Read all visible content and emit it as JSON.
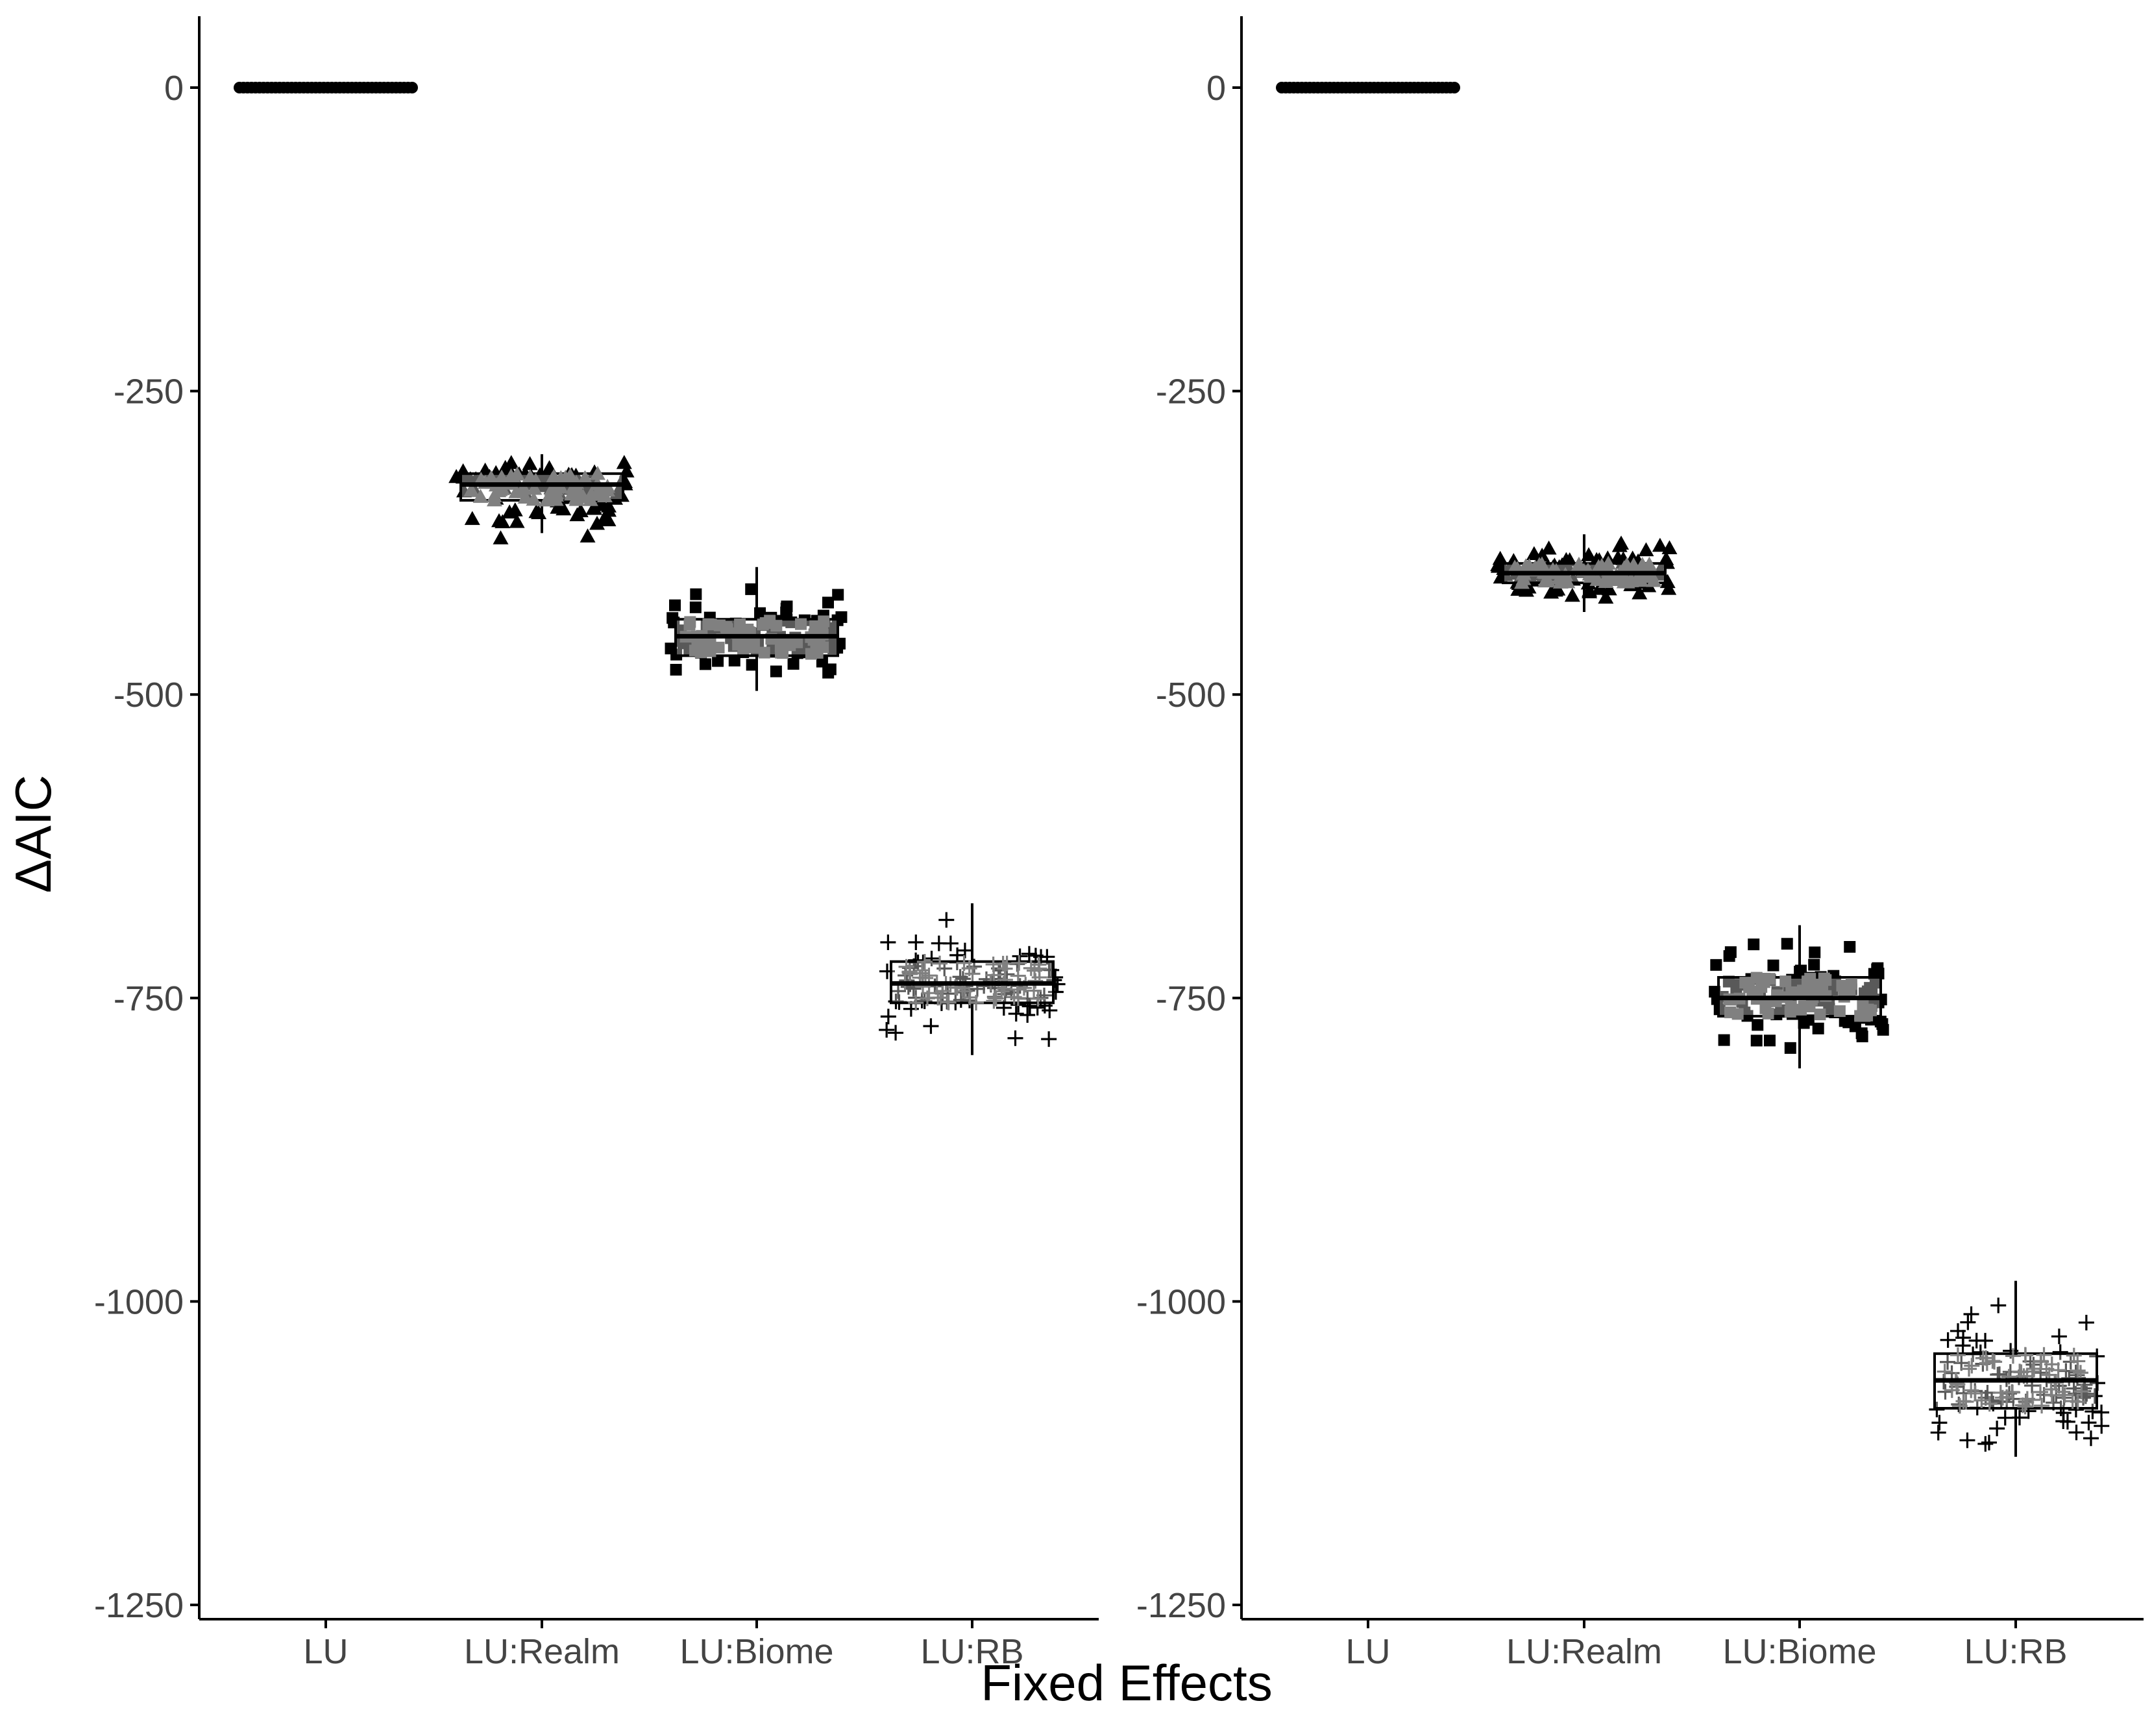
{
  "chart_data": {
    "type": "boxplot",
    "xlabel": "Fixed Effects",
    "ylabel": "ΔAIC",
    "ylim": [
      -1250,
      0
    ],
    "yticks": [
      0,
      -250,
      -500,
      -750,
      -1000,
      -1250
    ],
    "categories": [
      "LU",
      "LU:Realm",
      "LU:Biome",
      "LU:RB"
    ],
    "grid": false,
    "legend": "none",
    "colors": {
      "points": "#000000",
      "inner_points": "#808080",
      "box": "#000000",
      "axis": "#000000"
    },
    "panels": [
      {
        "boxes": [
          {
            "category": "LU",
            "shape": "circle",
            "q1": 0,
            "median": 0,
            "q3": 0,
            "whisker_low": 0,
            "whisker_high": 0,
            "points_min": 0,
            "points_max": 0
          },
          {
            "category": "LU:Realm",
            "shape": "triangle",
            "q1": -340,
            "median": -327,
            "q3": -318,
            "whisker_low": -367,
            "whisker_high": -302,
            "points_min": -393,
            "points_max": -300
          },
          {
            "category": "LU:Biome",
            "shape": "square",
            "q1": -468,
            "median": -452,
            "q3": -438,
            "whisker_low": -497,
            "whisker_high": -395,
            "points_min": -497,
            "points_max": -395
          },
          {
            "category": "LU:RB",
            "shape": "plus",
            "q1": -754,
            "median": -738,
            "q3": -720,
            "whisker_low": -797,
            "whisker_high": -672,
            "points_min": -800,
            "points_max": -670
          }
        ]
      },
      {
        "boxes": [
          {
            "category": "LU",
            "shape": "circle",
            "q1": 0,
            "median": 0,
            "q3": 0,
            "whisker_low": 0,
            "whisker_high": 0,
            "points_min": 0,
            "points_max": 0
          },
          {
            "category": "LU:Realm",
            "shape": "triangle",
            "q1": -408,
            "median": -400,
            "q3": -392,
            "whisker_low": -432,
            "whisker_high": -368,
            "points_min": -432,
            "points_max": -357
          },
          {
            "category": "LU:Biome",
            "shape": "square",
            "q1": -765,
            "median": -750,
            "q3": -733,
            "whisker_low": -808,
            "whisker_high": -690,
            "points_min": -835,
            "points_max": -688
          },
          {
            "category": "LU:RB",
            "shape": "plus",
            "q1": -1088,
            "median": -1065,
            "q3": -1043,
            "whisker_low": -1128,
            "whisker_high": -983,
            "points_min": -1160,
            "points_max": -980
          }
        ]
      }
    ]
  }
}
